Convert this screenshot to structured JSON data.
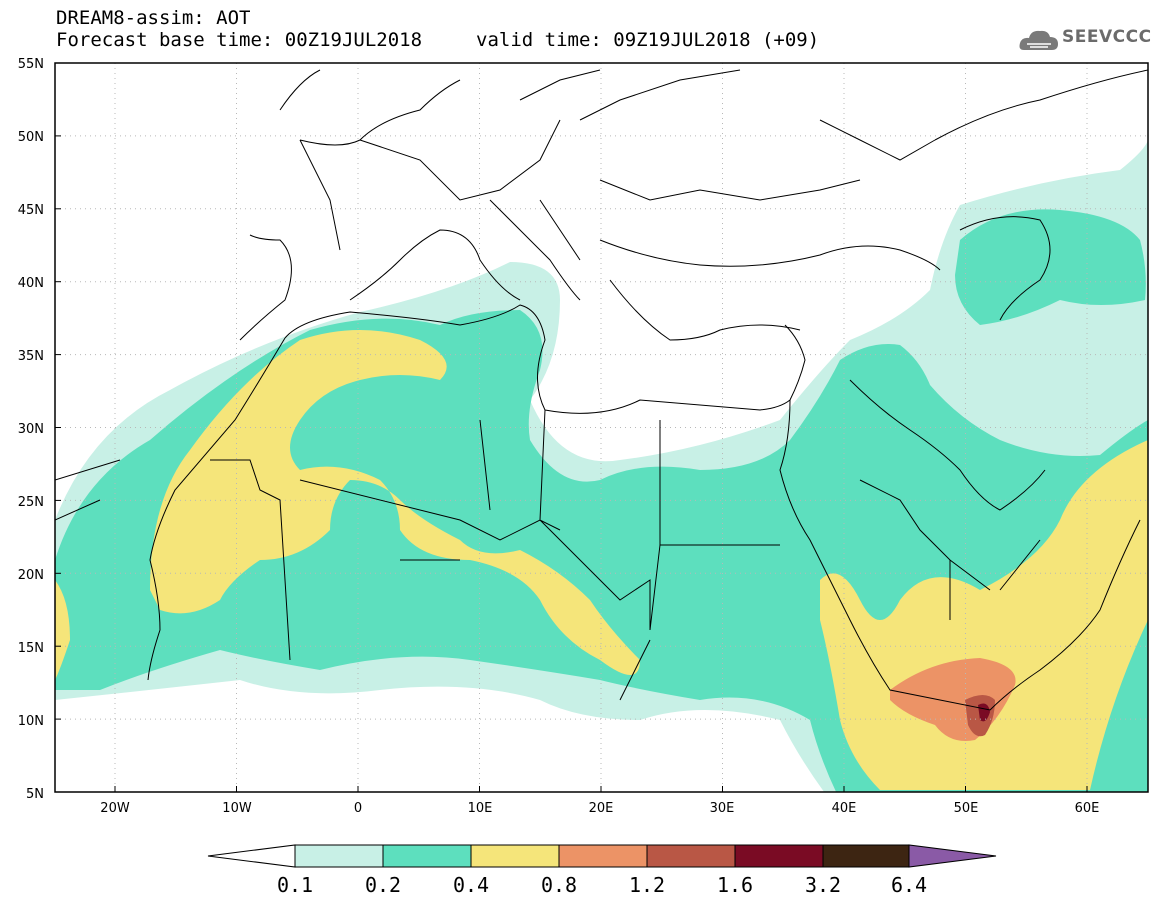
{
  "header": {
    "line1": "DREAM8-assim: AOT",
    "line2": "Forecast base time: 00Z19JUL2018",
    "valid": "valid time: 09Z19JUL2018 (+09)",
    "logo_text": "SEEVCCC"
  },
  "axes": {
    "lat_labels": [
      "55N",
      "50N",
      "45N",
      "40N",
      "35N",
      "30N",
      "25N",
      "20N",
      "15N",
      "10N",
      "5N"
    ],
    "lon_labels": [
      "20W",
      "10W",
      "0",
      "10E",
      "20E",
      "30E",
      "40E",
      "50E",
      "60E"
    ]
  },
  "colorbar": {
    "labels": [
      "0.1",
      "0.2",
      "0.4",
      "0.8",
      "1.2",
      "1.6",
      "3.2",
      "6.4"
    ],
    "colors": [
      "#ffffff",
      "#c8f0e6",
      "#5ddfbe",
      "#f5e57a",
      "#ec9366",
      "#b95745",
      "#7a0b24",
      "#3d2512",
      "#8a5aa6"
    ]
  },
  "colors": {
    "c1": "#c8f0e6",
    "c2": "#5ddfbe",
    "c3": "#f5e57a",
    "c4": "#ec9366",
    "c5": "#b95745",
    "c6": "#7a0b24"
  }
}
